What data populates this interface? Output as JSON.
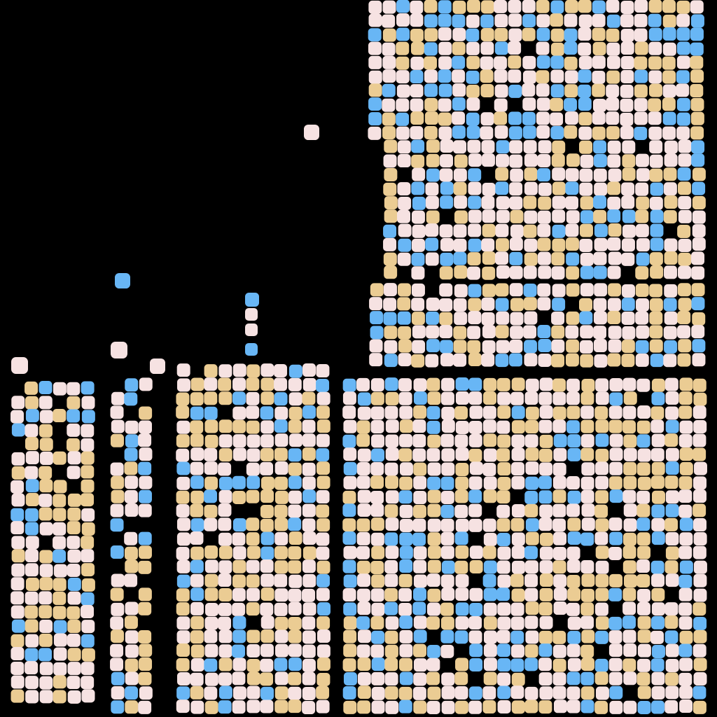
{
  "image": {
    "subject": "abstract-cell-mosaic",
    "background_color": "#000000",
    "palette": {
      "pink": "#F6E2E2",
      "tan": "#EBCC93",
      "blue": "#68B6F5"
    },
    "color_weights": {
      "pink": 0.52,
      "tan": 0.3,
      "blue": 0.18
    }
  }
}
